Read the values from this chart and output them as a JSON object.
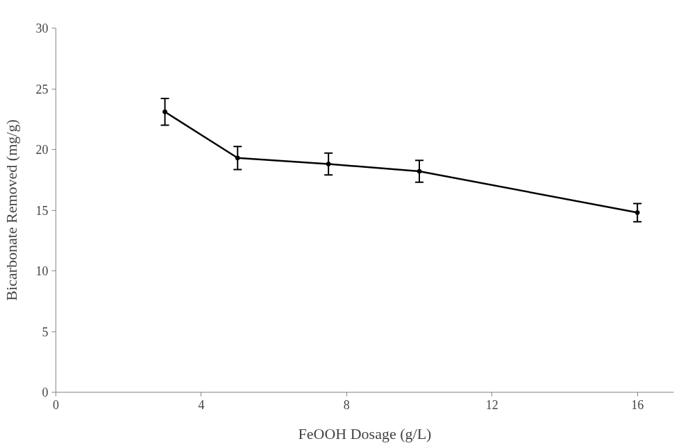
{
  "chart_data": {
    "type": "line",
    "xlabel": "FeOOH Dosage (g/L)",
    "ylabel": "Bicarbonate Removed (mg/g)",
    "x": [
      3,
      5,
      7.5,
      10,
      16
    ],
    "series": [
      {
        "color": "#000000",
        "values": [
          23.1,
          19.3,
          18.8,
          18.2,
          14.8
        ],
        "errors": [
          1.1,
          0.95,
          0.9,
          0.9,
          0.75
        ]
      }
    ],
    "xlim": [
      0,
      17
    ],
    "xticks": [
      0,
      4,
      8,
      12,
      16
    ],
    "ylim": [
      0,
      30
    ],
    "yticks": [
      0,
      5,
      10,
      15,
      20,
      25,
      30
    ],
    "grid": false,
    "marker": "circle",
    "line_style": "solid"
  }
}
